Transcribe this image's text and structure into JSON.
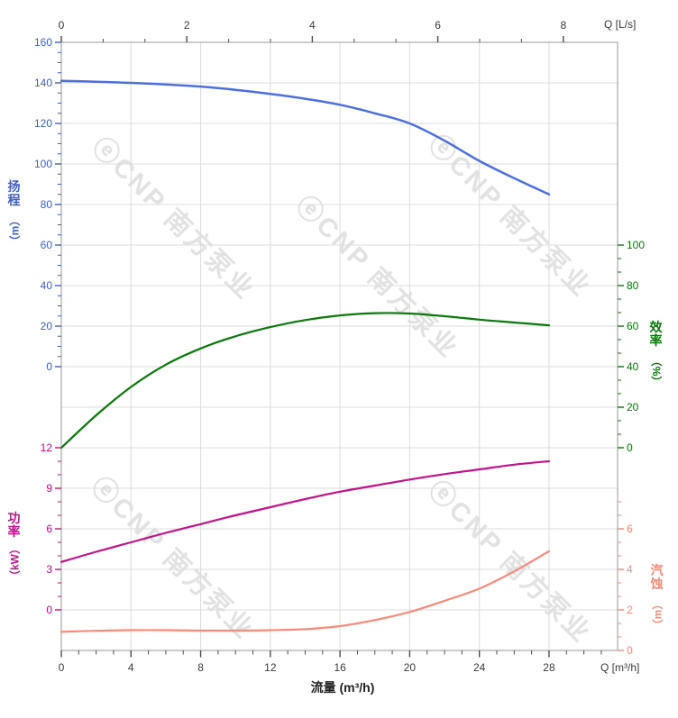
{
  "watermark": {
    "text": "ⓔCNP 南方泵业"
  },
  "side_labels": {
    "head": {
      "zh": "扬程",
      "unit": "（m）"
    },
    "power": {
      "zh": "功率",
      "unit": "（kW）"
    },
    "eff": {
      "zh": "效率",
      "unit": "（%）"
    },
    "npsh": {
      "zh": "汽蚀",
      "unit": "（m）"
    }
  },
  "chart_data": {
    "type": "line",
    "title": "",
    "x_label_bottom": "流量 (m³/h)",
    "x_unit_bottom": "Q [m³/h]",
    "x_unit_top": "Q [L/s]",
    "grid": true,
    "x_m3h": [
      0,
      2,
      4,
      6,
      8,
      10,
      12,
      14,
      16,
      18,
      20,
      22,
      24,
      26,
      28
    ],
    "x_ticks_bottom": [
      0,
      4,
      8,
      12,
      16,
      20,
      24,
      28
    ],
    "x_ticks_top_Ls": [
      0,
      2,
      4,
      6,
      8
    ],
    "xlim_m3h": [
      0,
      32
    ],
    "xlim_Ls": [
      0,
      8.86
    ],
    "series": [
      {
        "id": "head",
        "name": "扬程",
        "unit": "m",
        "color": "#4c70e0",
        "label_color": "#3e5ecf",
        "axis_side": "left",
        "axis_ticks": [
          160,
          140,
          120,
          100,
          80,
          60,
          40,
          20,
          0
        ],
        "ylim": [
          0,
          160
        ],
        "values": [
          141,
          140.6,
          140,
          139.2,
          138.2,
          136.6,
          134.6,
          132.2,
          129.2,
          125,
          120,
          111.5,
          101.5,
          93,
          85
        ]
      },
      {
        "id": "eff",
        "name": "效率",
        "unit": "%",
        "color": "#0a7a0a",
        "label_color": "#0a7a0a",
        "axis_side": "right",
        "axis_ticks": [
          100,
          80,
          60,
          40,
          20,
          0
        ],
        "ylim": [
          0,
          100
        ],
        "values": [
          0,
          16,
          30,
          41,
          49,
          55,
          59.5,
          63,
          65.3,
          66.4,
          66.2,
          64.9,
          63.2,
          61.8,
          60.4
        ]
      },
      {
        "id": "power",
        "name": "功率",
        "unit": "kW",
        "color": "#c4138c",
        "label_color": "#c4138c",
        "axis_side": "left",
        "axis_ticks": [
          12,
          9,
          6,
          3,
          0
        ],
        "ylim": [
          0,
          12
        ],
        "values": [
          3.55,
          4.3,
          5.0,
          5.7,
          6.35,
          7.0,
          7.6,
          8.2,
          8.75,
          9.2,
          9.65,
          10.05,
          10.4,
          10.75,
          11.0
        ]
      },
      {
        "id": "npsh",
        "name": "汽蚀",
        "unit": "m",
        "color": "#fa8a79",
        "label_color": "#fa8a79",
        "axis_side": "right",
        "axis_ticks": [
          6,
          4,
          2,
          0
        ],
        "ylim": [
          0,
          8
        ],
        "values": [
          0.92,
          0.97,
          1.0,
          1.0,
          0.98,
          0.98,
          1.0,
          1.05,
          1.2,
          1.5,
          1.9,
          2.45,
          3.05,
          3.9,
          4.9
        ]
      }
    ]
  }
}
